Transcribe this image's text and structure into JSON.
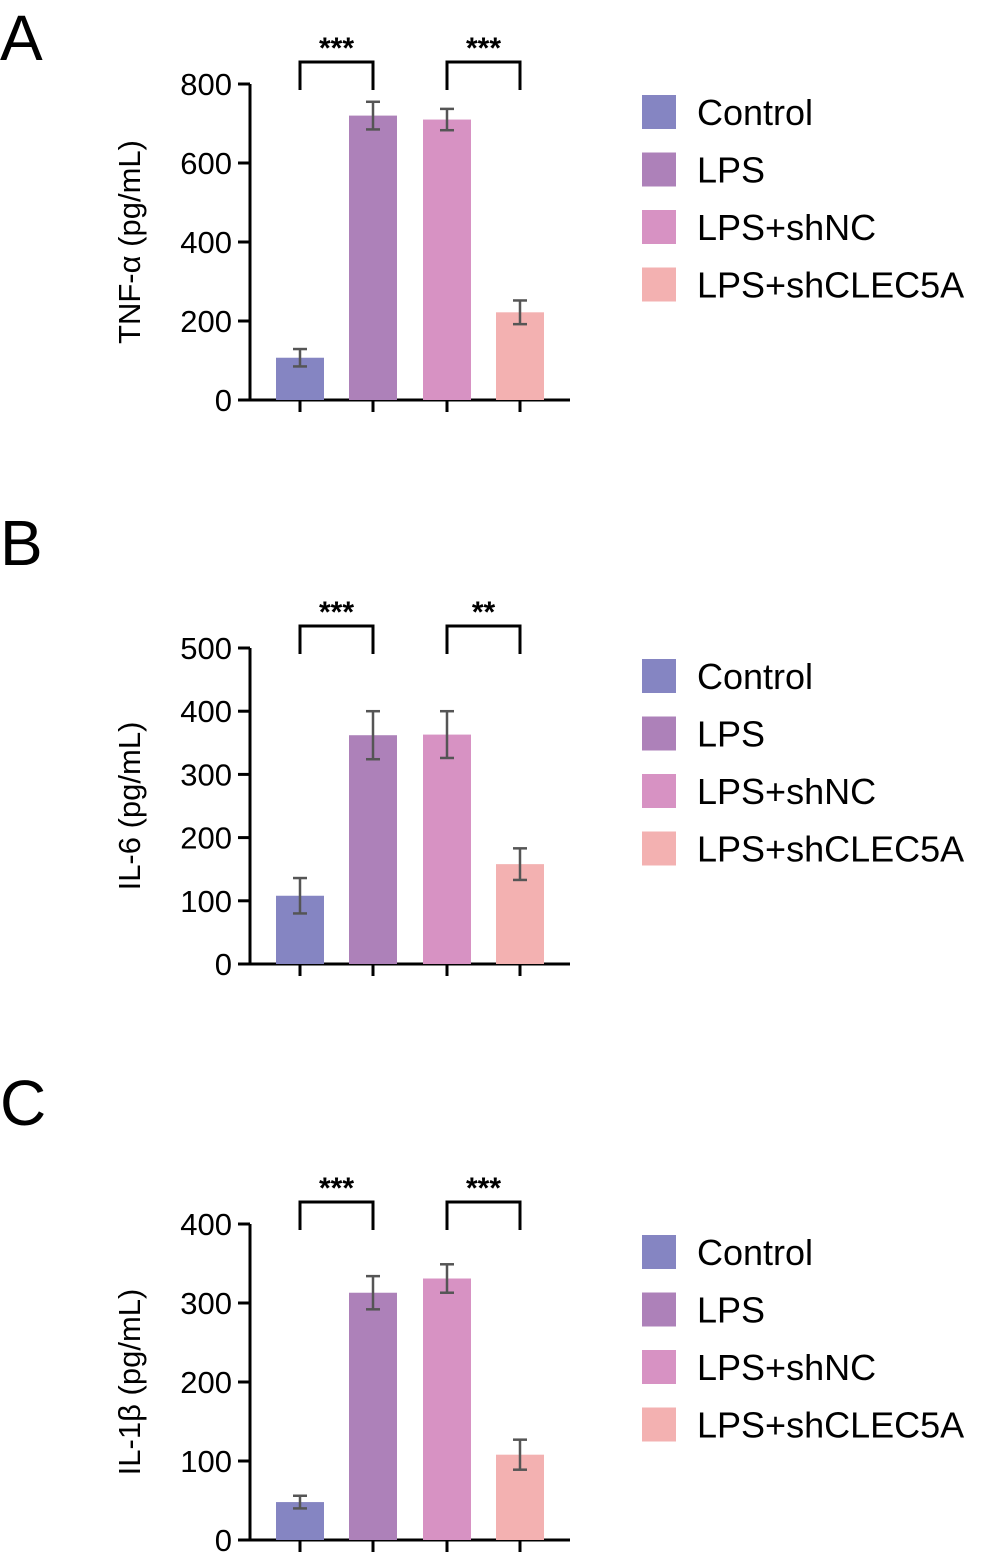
{
  "legend": [
    {
      "name": "Control",
      "color": "#8585c2"
    },
    {
      "name": "LPS",
      "color": "#ad81b9"
    },
    {
      "name": "LPS+shNC",
      "color": "#d792c3"
    },
    {
      "name": "LPS+shCLEC5A",
      "color": "#f3b1b1"
    }
  ],
  "chart_data": [
    {
      "type": "bar",
      "panel": "A",
      "title": "",
      "xlabel": "",
      "ylabel": "TNF-α (pg/mL)",
      "categories": [
        "Control",
        "LPS",
        "LPS+shNC",
        "LPS+shCLEC5A"
      ],
      "values": [
        107,
        720,
        710,
        222
      ],
      "errors": [
        22,
        35,
        27,
        30
      ],
      "ylim": [
        0,
        800
      ],
      "yticks": [
        0,
        200,
        400,
        600,
        800
      ],
      "legend_position": "right",
      "significance": [
        {
          "from": 0,
          "to": 1,
          "label": "***"
        },
        {
          "from": 2,
          "to": 3,
          "label": "***"
        }
      ]
    },
    {
      "type": "bar",
      "panel": "B",
      "title": "",
      "xlabel": "",
      "ylabel": "IL-6 (pg/mL)",
      "categories": [
        "Control",
        "LPS",
        "LPS+shNC",
        "LPS+shCLEC5A"
      ],
      "values": [
        108,
        362,
        363,
        158
      ],
      "errors": [
        28,
        38,
        37,
        25
      ],
      "ylim": [
        0,
        500
      ],
      "yticks": [
        0,
        100,
        200,
        300,
        400,
        500
      ],
      "legend_position": "right",
      "significance": [
        {
          "from": 0,
          "to": 1,
          "label": "***"
        },
        {
          "from": 2,
          "to": 3,
          "label": "**"
        }
      ]
    },
    {
      "type": "bar",
      "panel": "C",
      "title": "",
      "xlabel": "",
      "ylabel": "IL-1β (pg/mL)",
      "categories": [
        "Control",
        "LPS",
        "LPS+shNC",
        "LPS+shCLEC5A"
      ],
      "values": [
        48,
        313,
        331,
        108
      ],
      "errors": [
        8,
        21,
        18,
        19
      ],
      "ylim": [
        0,
        400
      ],
      "yticks": [
        0,
        100,
        200,
        300,
        400
      ],
      "legend_position": "right",
      "significance": [
        {
          "from": 0,
          "to": 1,
          "label": "***"
        },
        {
          "from": 2,
          "to": 3,
          "label": "***"
        }
      ]
    }
  ]
}
